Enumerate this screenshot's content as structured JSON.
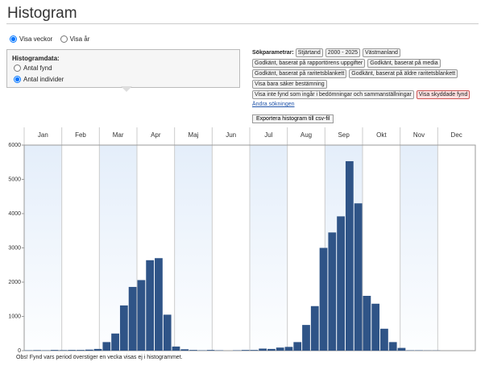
{
  "header": {
    "title": "Histogram"
  },
  "view": {
    "options": [
      "Visa veckor",
      "Visa år"
    ]
  },
  "histogram_data": {
    "label": "Histogramdata:",
    "options": [
      "Antal fynd",
      "Antal individer"
    ]
  },
  "search": {
    "label": "Sökparametrar:",
    "tags": [
      "Stjärtand",
      "2000 - 2025",
      "Västmanland",
      "Godkänt, baserat på rapportörens uppgifter",
      "Godkänt, baserat på media",
      "Godkänt, baserat på raritetsblankett",
      "Godkänt, baserat på äldre raritetsblankett",
      "Visa bara säker bestämning",
      "Visa inte fynd som ingår i bedömningar och sammanställningar"
    ],
    "warning_tag": "Visa skyddade fynd",
    "change_link": "Ändra sökningen",
    "export_button": "Exportera histogram till csv-fil"
  },
  "chart_data": {
    "type": "bar",
    "color": "#2f5487",
    "months": [
      "Jan",
      "Feb",
      "Mar",
      "Apr",
      "Maj",
      "Jun",
      "Jul",
      "Aug",
      "Sep",
      "Okt",
      "Nov",
      "Dec"
    ],
    "values": [
      10,
      15,
      10,
      20,
      15,
      20,
      20,
      30,
      50,
      250,
      500,
      1320,
      1860,
      2060,
      2640,
      2700,
      1050,
      120,
      40,
      20,
      10,
      20,
      10,
      0,
      10,
      20,
      20,
      60,
      50,
      90,
      110,
      250,
      750,
      1300,
      3000,
      3450,
      3920,
      5530,
      4300,
      1600,
      1370,
      640,
      250,
      80,
      10,
      10,
      5,
      5,
      0,
      0,
      0,
      0
    ],
    "ylim": [
      0,
      6000
    ],
    "yticks": [
      0,
      1000,
      2000,
      3000,
      4000,
      5000,
      6000
    ]
  },
  "footnote": "Obs! Fynd vars period överstiger en vecka visas ej i histogrammet."
}
